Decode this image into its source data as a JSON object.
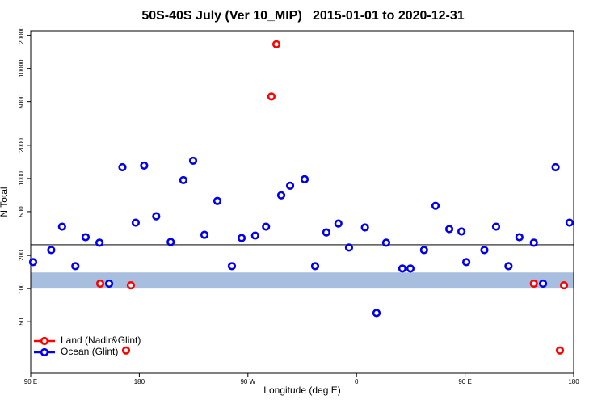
{
  "chart_data": {
    "type": "scatter",
    "title": "50S-40S July (Ver 10_MIP)   2015-01-01 to 2020-12-31",
    "x_label": "Longitude (deg E)",
    "y_label": "N Total",
    "xlim": [
      90,
      540
    ],
    "ylim": [
      17,
      22000
    ],
    "log_y": true,
    "xticks": [
      {
        "value": 90,
        "label": "90 E"
      },
      {
        "value": 180,
        "label": "180"
      },
      {
        "value": 270,
        "label": "90 W"
      },
      {
        "value": 360,
        "label": "0"
      },
      {
        "value": 450,
        "label": "90 E"
      },
      {
        "value": 540,
        "label": "180"
      }
    ],
    "yticks": [
      50,
      100,
      200,
      500,
      1000,
      2000,
      5000,
      10000,
      20000
    ],
    "reference_line": 250,
    "band": [
      100,
      140
    ],
    "band_color": "#a7bedf",
    "legend": "bottom-left",
    "series": [
      {
        "name": "Land (Nadir&Glint)",
        "color": "#ff0000",
        "x": [
          147.6,
          169,
          173,
          289.5,
          293.6,
          507,
          528.6,
          532
        ],
        "values": [
          111,
          27.4,
          107,
          5560,
          16560,
          111,
          27.4,
          107
        ]
      },
      {
        "name": "Ocean (Glint)",
        "color": "#0000ee",
        "x": [
          92,
          107,
          116,
          127,
          135.5,
          147,
          155,
          166,
          177,
          184,
          194,
          206,
          216.5,
          224.6,
          234,
          244.7,
          256.7,
          264.8,
          276,
          285,
          297.6,
          305,
          317,
          325.7,
          335,
          345,
          353.8,
          367,
          376.6,
          384.6,
          398,
          404.7,
          416,
          425.5,
          436.9,
          447,
          451,
          466,
          475.7,
          486,
          495,
          507,
          514.6,
          525,
          536.6
        ],
        "values": [
          174,
          224,
          365,
          160,
          293,
          261,
          111,
          1265,
          397,
          1310,
          454,
          265,
          966,
          1450,
          308,
          625,
          160,
          288,
          303,
          365,
          703,
          859,
          984,
          160,
          324,
          390,
          236,
          359,
          60,
          261,
          152,
          152,
          224,
          565,
          347,
          330,
          174,
          224,
          365,
          160,
          293,
          261,
          111,
          1265,
          397
        ]
      }
    ]
  }
}
